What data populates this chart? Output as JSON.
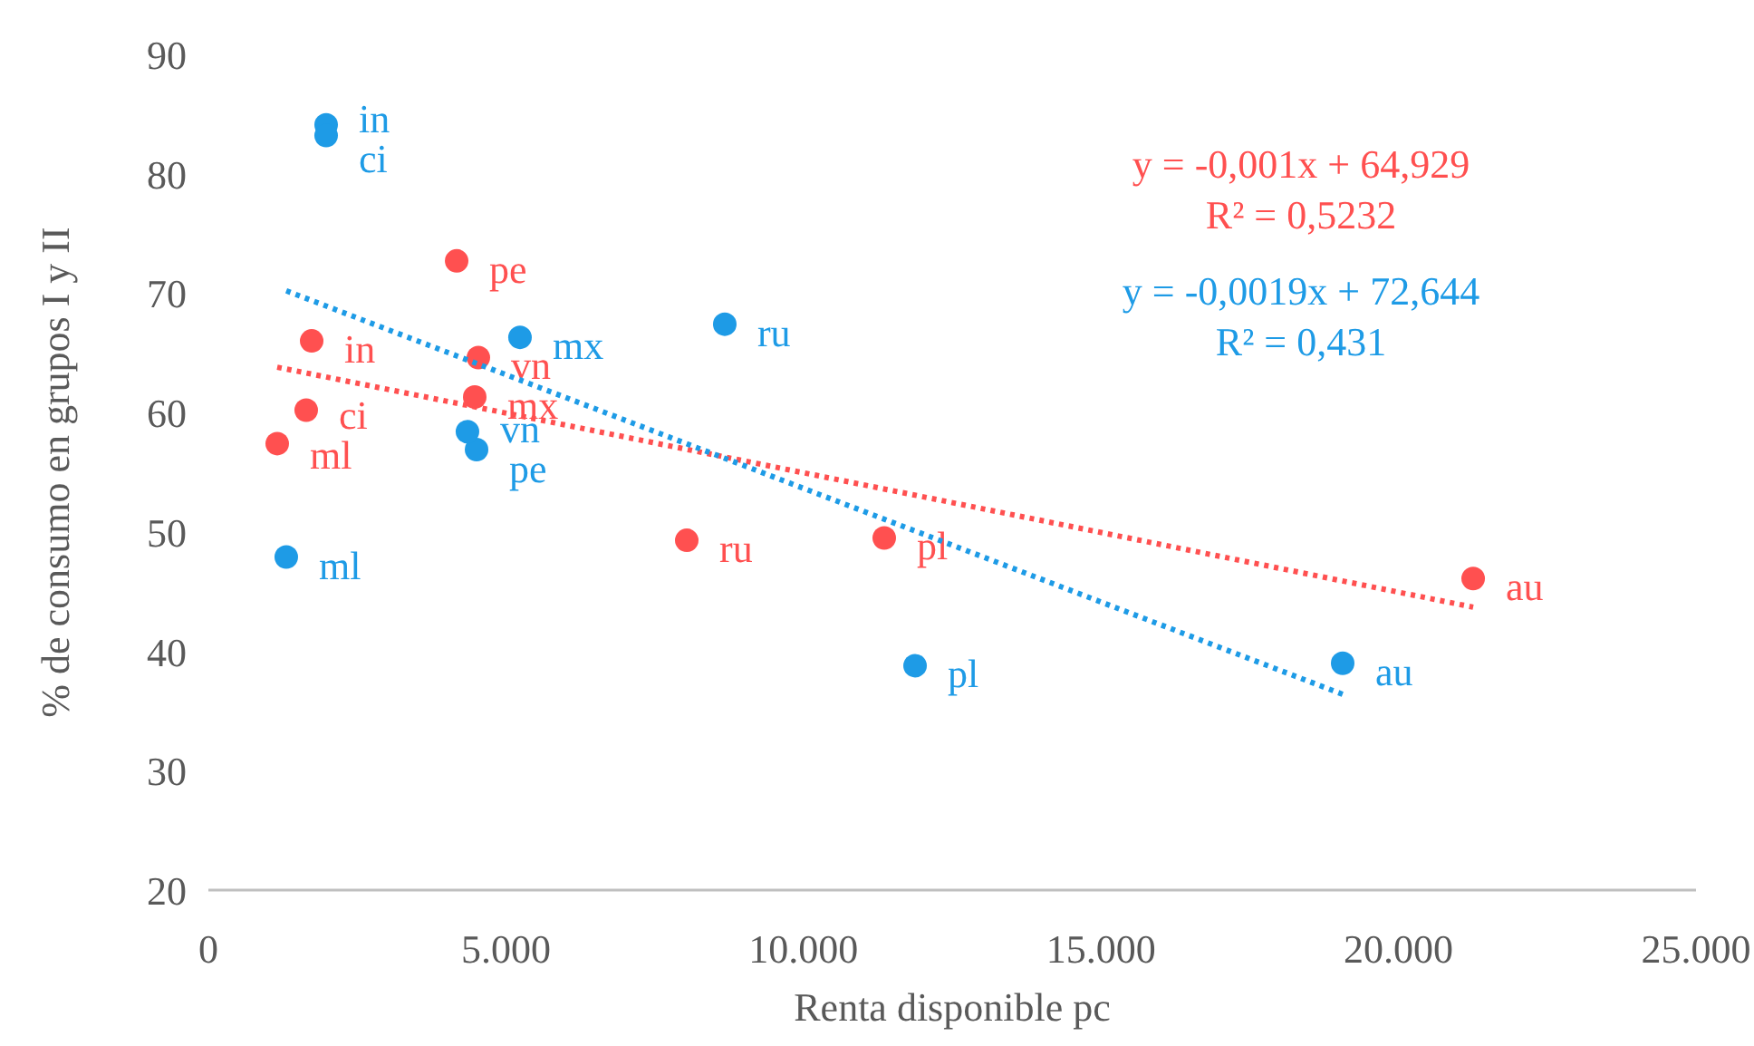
{
  "chart_data": {
    "type": "scatter",
    "xlabel": "Renta disponible pc",
    "ylabel": "% de consumo en grupos I y II",
    "xlim": [
      0,
      25000
    ],
    "xticks": [
      {
        "value": 0,
        "label": "0"
      },
      {
        "value": 5000,
        "label": "5.000"
      },
      {
        "value": 10000,
        "label": "10.000"
      },
      {
        "value": 15000,
        "label": "15.000"
      },
      {
        "value": 20000,
        "label": "20.000"
      },
      {
        "value": 25000,
        "label": "25.000"
      }
    ],
    "ylim": [
      20,
      90
    ],
    "yticks": [
      20,
      30,
      40,
      50,
      60,
      70,
      80,
      90
    ],
    "grid": false,
    "marker": "circle",
    "series": [
      {
        "color": "#ff5050",
        "x": [
          1736,
          1644,
          1157,
          4172,
          4537,
          4476,
          8039,
          11358,
          21255
        ],
        "values": [
          66.0,
          60.2,
          57.4,
          72.7,
          64.6,
          61.3,
          49.3,
          49.5,
          46.1
        ],
        "value_labels": [
          "in",
          "ci",
          "ml",
          "pe",
          "vn",
          "mx",
          "ru",
          "pl",
          "au"
        ]
      },
      {
        "color": "#1e9be6",
        "x": [
          1979,
          1979,
          1309,
          4507,
          4354,
          5237,
          8678,
          11876,
          19062
        ],
        "values": [
          84.1,
          83.2,
          47.9,
          56.9,
          58.4,
          66.3,
          67.4,
          38.8,
          39.0
        ],
        "value_labels": [
          "in",
          "ci",
          "ml",
          "pe",
          "vn",
          "mx",
          "ru",
          "pl",
          "au"
        ]
      },
      {
        "type": "line",
        "name": "y = -0,001x + 64,929\nR² = 0,5232",
        "color": "#ff5050",
        "line_style": "dotted",
        "marker": "none",
        "x": [
          1157,
          21255
        ],
        "values": [
          63.8,
          43.7
        ]
      },
      {
        "type": "line",
        "name": "y = -0,0019x + 72,644\nR² = 0,431",
        "color": "#1e9be6",
        "line_style": "dotted",
        "marker": "none",
        "x": [
          1309,
          19062
        ],
        "values": [
          70.2,
          36.4
        ]
      }
    ]
  }
}
